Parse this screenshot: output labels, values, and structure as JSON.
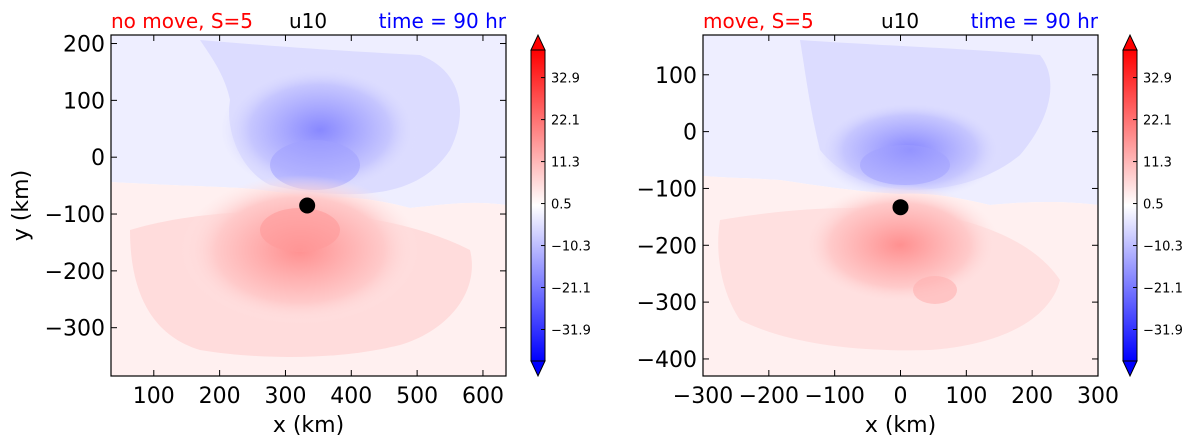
{
  "colors": {
    "red_title": "#ff0000",
    "blue_title": "#0000ff",
    "positive": "#ff0000",
    "negative": "#0000ff",
    "marker": "#000000"
  },
  "chart_data": [
    {
      "type": "heatmap",
      "title_left": "no move, S=5",
      "title_center": "u10",
      "title_right": "time = 90 hr",
      "xlabel": "x (km)",
      "ylabel": "y (km)",
      "xlim": [
        35,
        635
      ],
      "ylim": [
        -385,
        215
      ],
      "xticks": [
        100,
        200,
        300,
        400,
        500,
        600
      ],
      "yticks": [
        200,
        100,
        0,
        -100,
        -200,
        -300
      ],
      "center": [
        333,
        -85
      ],
      "field_range": [
        -40,
        40
      ],
      "colorbar_ticks": [
        "32.9",
        "22.1",
        "11.3",
        "0.5",
        "−10.3",
        "−21.1",
        "−31.9"
      ],
      "colorbar_values": [
        32.9,
        22.1,
        11.3,
        0.5,
        -10.3,
        -21.1,
        -31.9
      ]
    },
    {
      "type": "heatmap",
      "title_left": "move, S=5",
      "title_center": "u10",
      "title_right": "time = 90 hr",
      "xlabel": "x (km)",
      "ylabel": "",
      "xlim": [
        -300,
        300
      ],
      "ylim": [
        -430,
        170
      ],
      "xticks": [
        -300,
        -200,
        -100,
        0,
        100,
        200,
        300
      ],
      "yticks": [
        100,
        0,
        -100,
        -200,
        -300,
        -400
      ],
      "center": [
        0,
        -133
      ],
      "field_range": [
        -40,
        40
      ],
      "colorbar_ticks": [
        "32.9",
        "22.1",
        "11.3",
        "0.5",
        "−10.3",
        "−21.1",
        "−31.9"
      ],
      "colorbar_values": [
        32.9,
        22.1,
        11.3,
        0.5,
        -10.3,
        -21.1,
        -31.9
      ]
    }
  ]
}
